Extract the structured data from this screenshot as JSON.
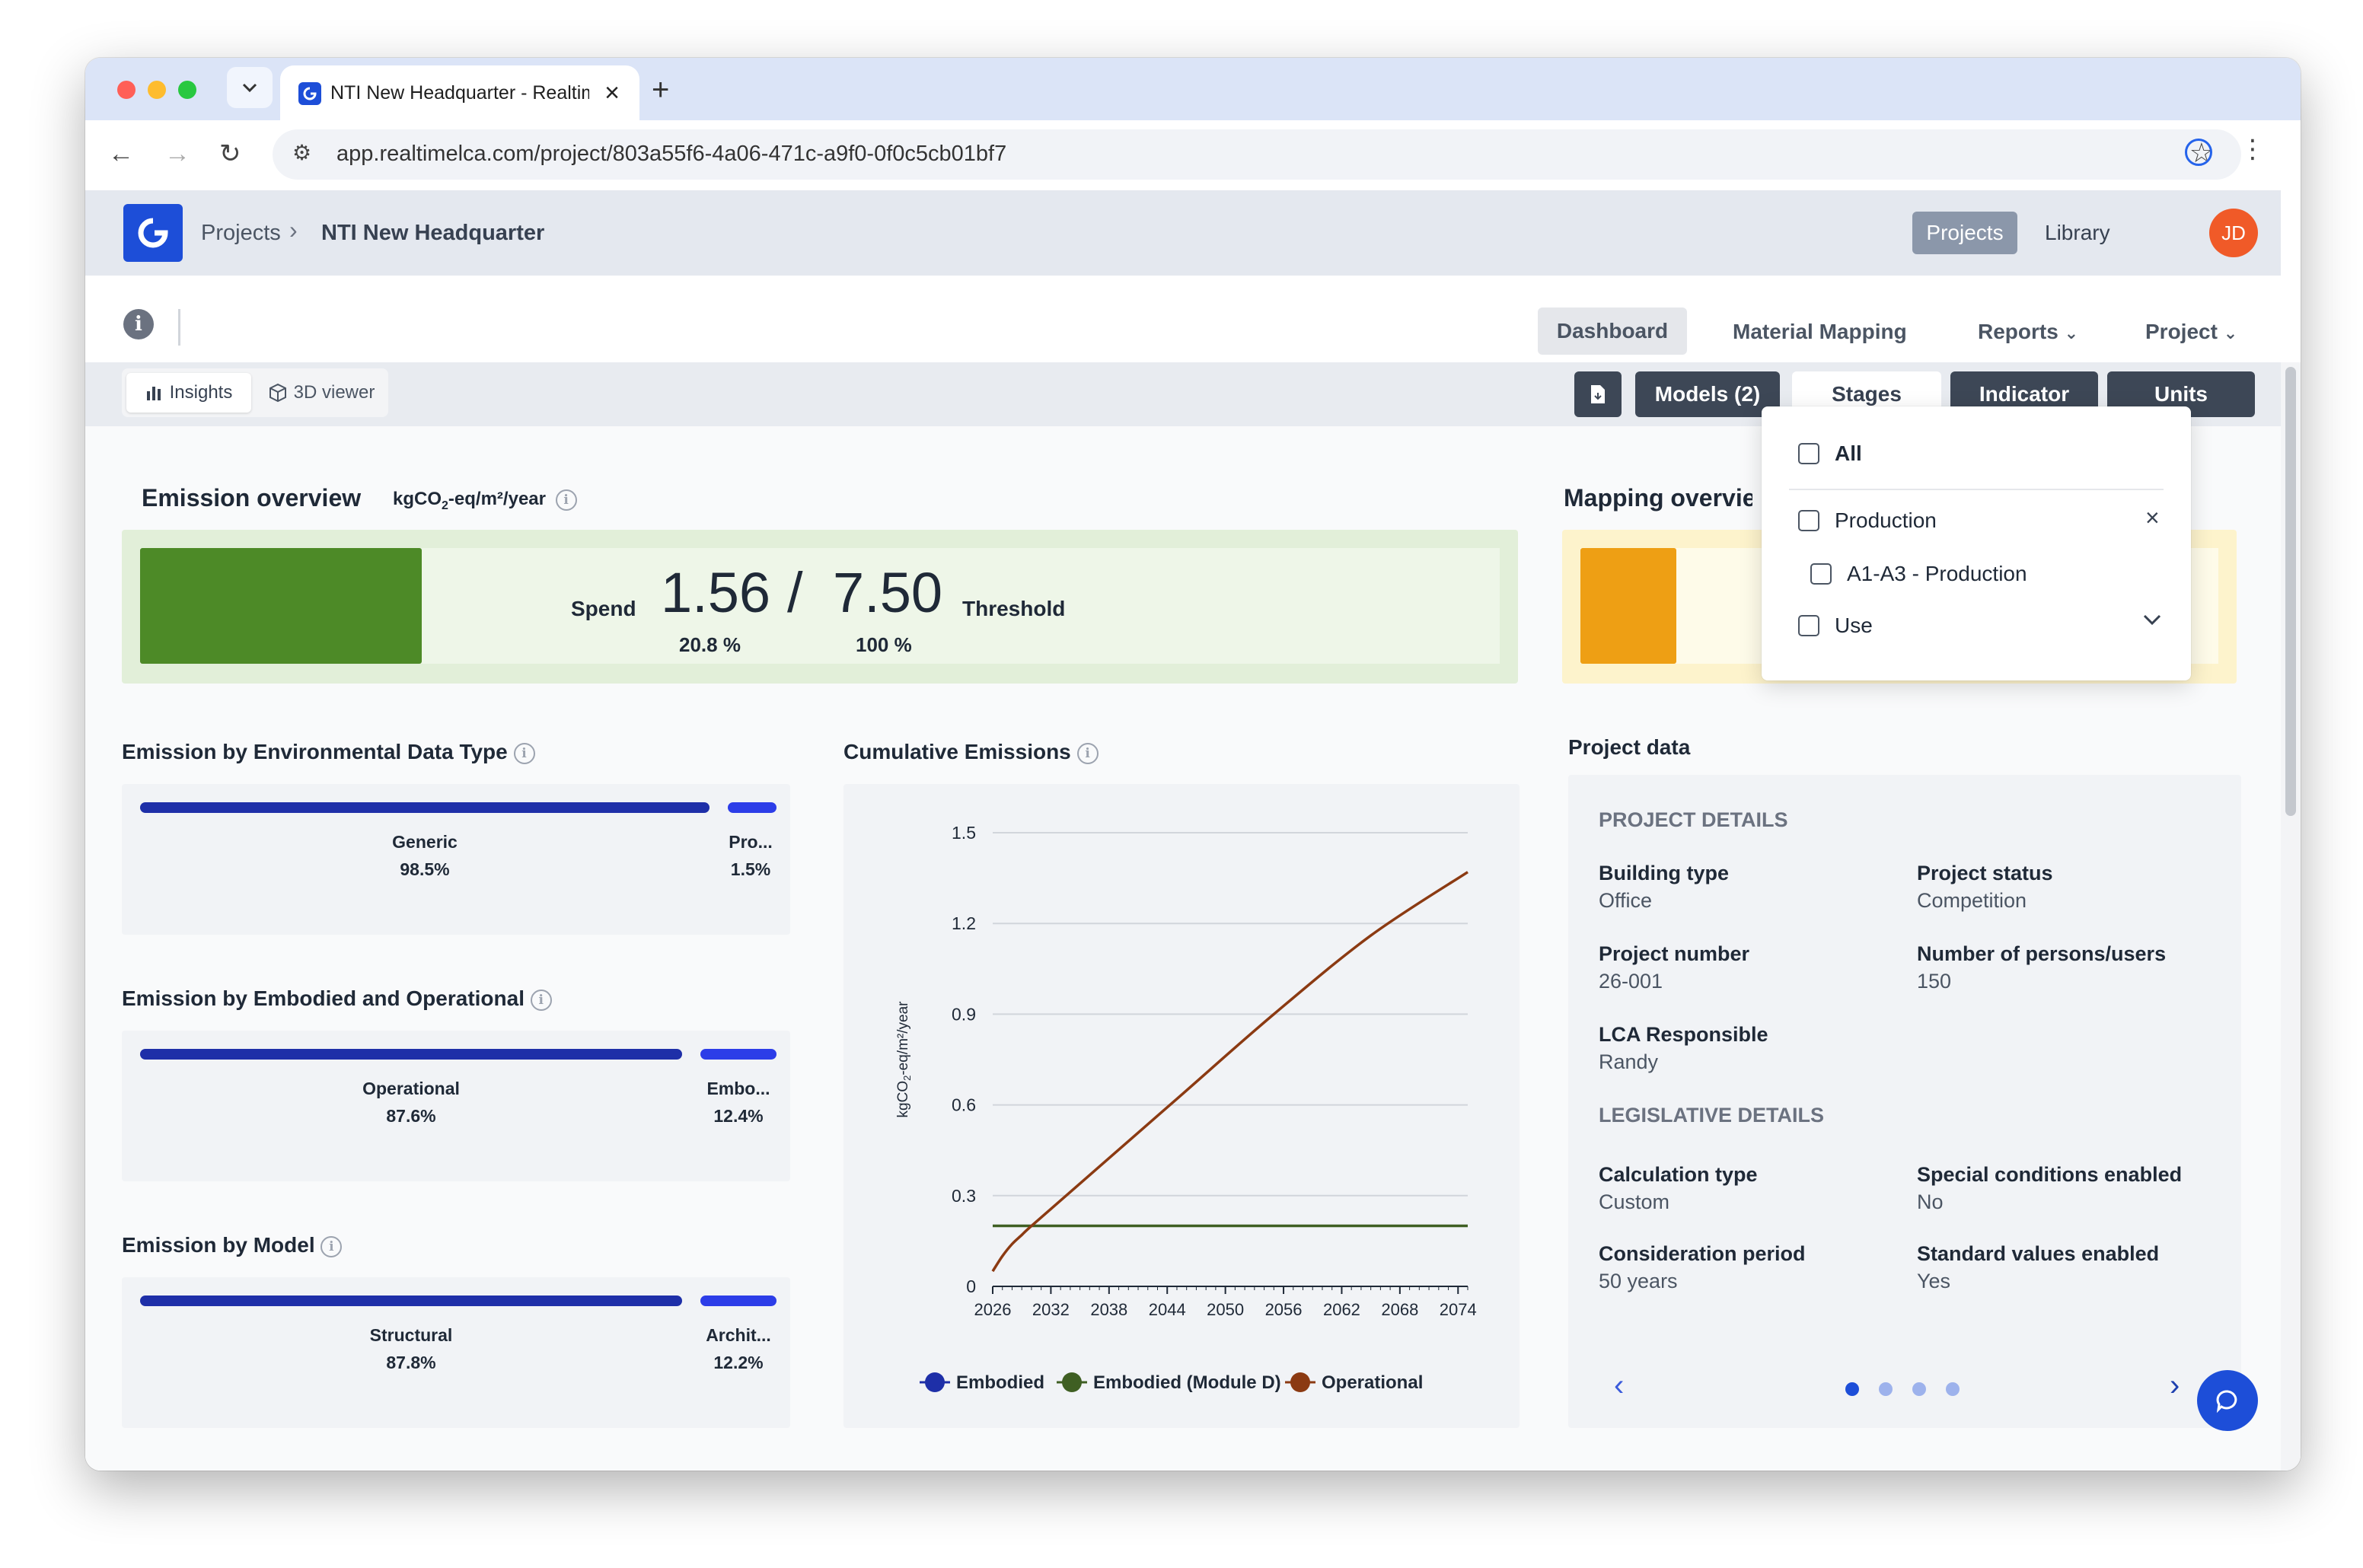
{
  "browser": {
    "tab_title": "NTI New Headquarter - RealtimeLCA",
    "url": "app.realtimelca.com/project/803a55f6-4a06-471c-a9f0-0f0c5cb01bf7"
  },
  "header": {
    "breadcrumb_root": "Projects",
    "breadcrumb_current": "NTI New Headquarter",
    "nav_projects": "Projects",
    "nav_library": "Library",
    "avatar_initials": "JD"
  },
  "subnav": {
    "dashboard": "Dashboard",
    "material_mapping": "Material Mapping",
    "reports": "Reports",
    "project": "Project"
  },
  "toolbar": {
    "insights": "Insights",
    "viewer_3d": "3D viewer",
    "models": "Models (2)",
    "stages": "Stages",
    "indicator": "Indicator",
    "units": "Units"
  },
  "emission_overview": {
    "title": "Emission overview",
    "unit_main": "kgCO",
    "unit_sub": "2",
    "unit_rest": "-eq/m²/year",
    "spend_label": "Spend",
    "spend_value": "1.56",
    "separator": "/",
    "threshold_value": "7.50",
    "threshold_label": "Threshold",
    "spend_pct": "20.8 %",
    "threshold_pct": "100 %",
    "fill_fraction": 0.208,
    "bar_color": "#4d8a27"
  },
  "mapping_overview": {
    "title": "Mapping overview",
    "bar_color": "#ee9f14"
  },
  "breakdowns": [
    {
      "title": "Emission by Environmental Data Type",
      "items": [
        {
          "label": "Generic",
          "pct": "98.5%"
        },
        {
          "label": "Pro...",
          "pct": "1.5%"
        }
      ]
    },
    {
      "title": "Emission by Embodied and Operational",
      "items": [
        {
          "label": "Operational",
          "pct": "87.6%"
        },
        {
          "label": "Embo...",
          "pct": "12.4%"
        }
      ]
    },
    {
      "title": "Emission by Model",
      "items": [
        {
          "label": "Structural",
          "pct": "87.8%"
        },
        {
          "label": "Archit...",
          "pct": "12.2%"
        }
      ]
    }
  ],
  "cumulative": {
    "title": "Cumulative Emissions"
  },
  "chart_data": {
    "type": "line",
    "title": "Cumulative Emissions",
    "ylabel_main": "kgCO",
    "ylabel_sub": "2",
    "ylabel_rest": "-eq/m²/year",
    "xlabel": "",
    "x_ticks": [
      "2026",
      "2032",
      "2038",
      "2044",
      "2050",
      "2056",
      "2062",
      "2068",
      "2074"
    ],
    "y_ticks": [
      "0",
      "0.3",
      "0.6",
      "0.9",
      "1.2",
      "1.5"
    ],
    "xlim": [
      2026,
      2075
    ],
    "ylim": [
      0,
      1.5
    ],
    "grid": true,
    "legend_position": "bottom",
    "series": [
      {
        "name": "Embodied",
        "color": "#1e2fa8",
        "x": [],
        "y": []
      },
      {
        "name": "Embodied (Module D)",
        "color": "#3f5f23",
        "x": [
          2026,
          2075
        ],
        "y": [
          0.2,
          0.2
        ]
      },
      {
        "name": "Operational",
        "color": "#8b3a12",
        "x": [
          2026,
          2027,
          2028,
          2029,
          2030,
          2035,
          2045,
          2055,
          2065,
          2075
        ],
        "y": [
          0.05,
          0.1,
          0.14,
          0.17,
          0.2,
          0.34,
          0.62,
          0.9,
          1.16,
          1.37
        ]
      }
    ]
  },
  "project_data": {
    "title": "Project data",
    "project_details": "PROJECT DETAILS",
    "building_type_label": "Building type",
    "building_type": "Office",
    "project_status_label": "Project status",
    "project_status": "Competition",
    "project_number_label": "Project number",
    "project_number": "26-001",
    "persons_label": "Number of persons/users",
    "persons": "150",
    "lca_label": "LCA Responsible",
    "lca": "Randy",
    "legislative_details": "LEGISLATIVE DETAILS",
    "calc_type_label": "Calculation type",
    "calc_type": "Custom",
    "special_label": "Special conditions enabled",
    "special": "No",
    "period_label": "Consideration period",
    "period": "50 years",
    "standard_label": "Standard values enabled",
    "standard": "Yes",
    "carousel_active": 1,
    "carousel_total": 4
  },
  "stages_dropdown": {
    "all": "All",
    "production": "Production",
    "a1a3": "A1-A3 - Production",
    "use": "Use"
  }
}
